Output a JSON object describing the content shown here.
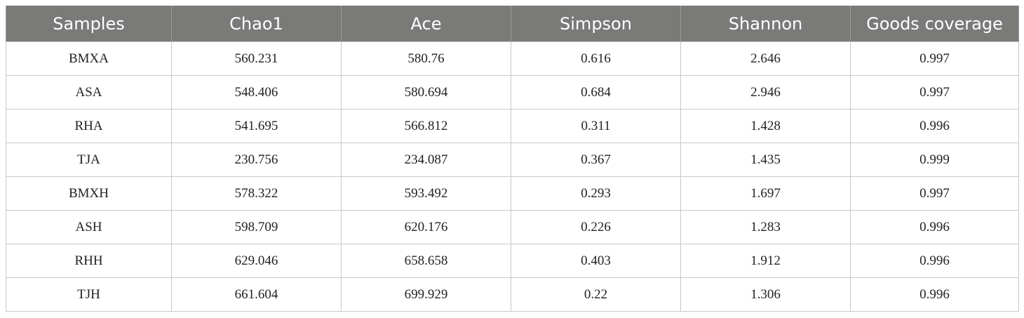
{
  "table": {
    "headers": [
      "Samples",
      "Chao1",
      "Ace",
      "Simpson",
      "Shannon",
      "Goods coverage"
    ],
    "rows": [
      [
        "BMXA",
        "560.231",
        "580.76",
        "0.616",
        "2.646",
        "0.997"
      ],
      [
        "ASA",
        "548.406",
        "580.694",
        "0.684",
        "2.946",
        "0.997"
      ],
      [
        "RHA",
        "541.695",
        "566.812",
        "0.311",
        "1.428",
        "0.996"
      ],
      [
        "TJA",
        "230.756",
        "234.087",
        "0.367",
        "1.435",
        "0.999"
      ],
      [
        "BMXH",
        "578.322",
        "593.492",
        "0.293",
        "1.697",
        "0.997"
      ],
      [
        "ASH",
        "598.709",
        "620.176",
        "0.226",
        "1.283",
        "0.996"
      ],
      [
        "RHH",
        "629.046",
        "658.658",
        "0.403",
        "1.912",
        "0.996"
      ],
      [
        "TJH",
        "661.604",
        "699.929",
        "0.22",
        "1.306",
        "0.996"
      ]
    ]
  },
  "colors": {
    "header_bg": "#7a7b79",
    "header_text": "#ffffff",
    "grid": "#c8c8c8"
  }
}
